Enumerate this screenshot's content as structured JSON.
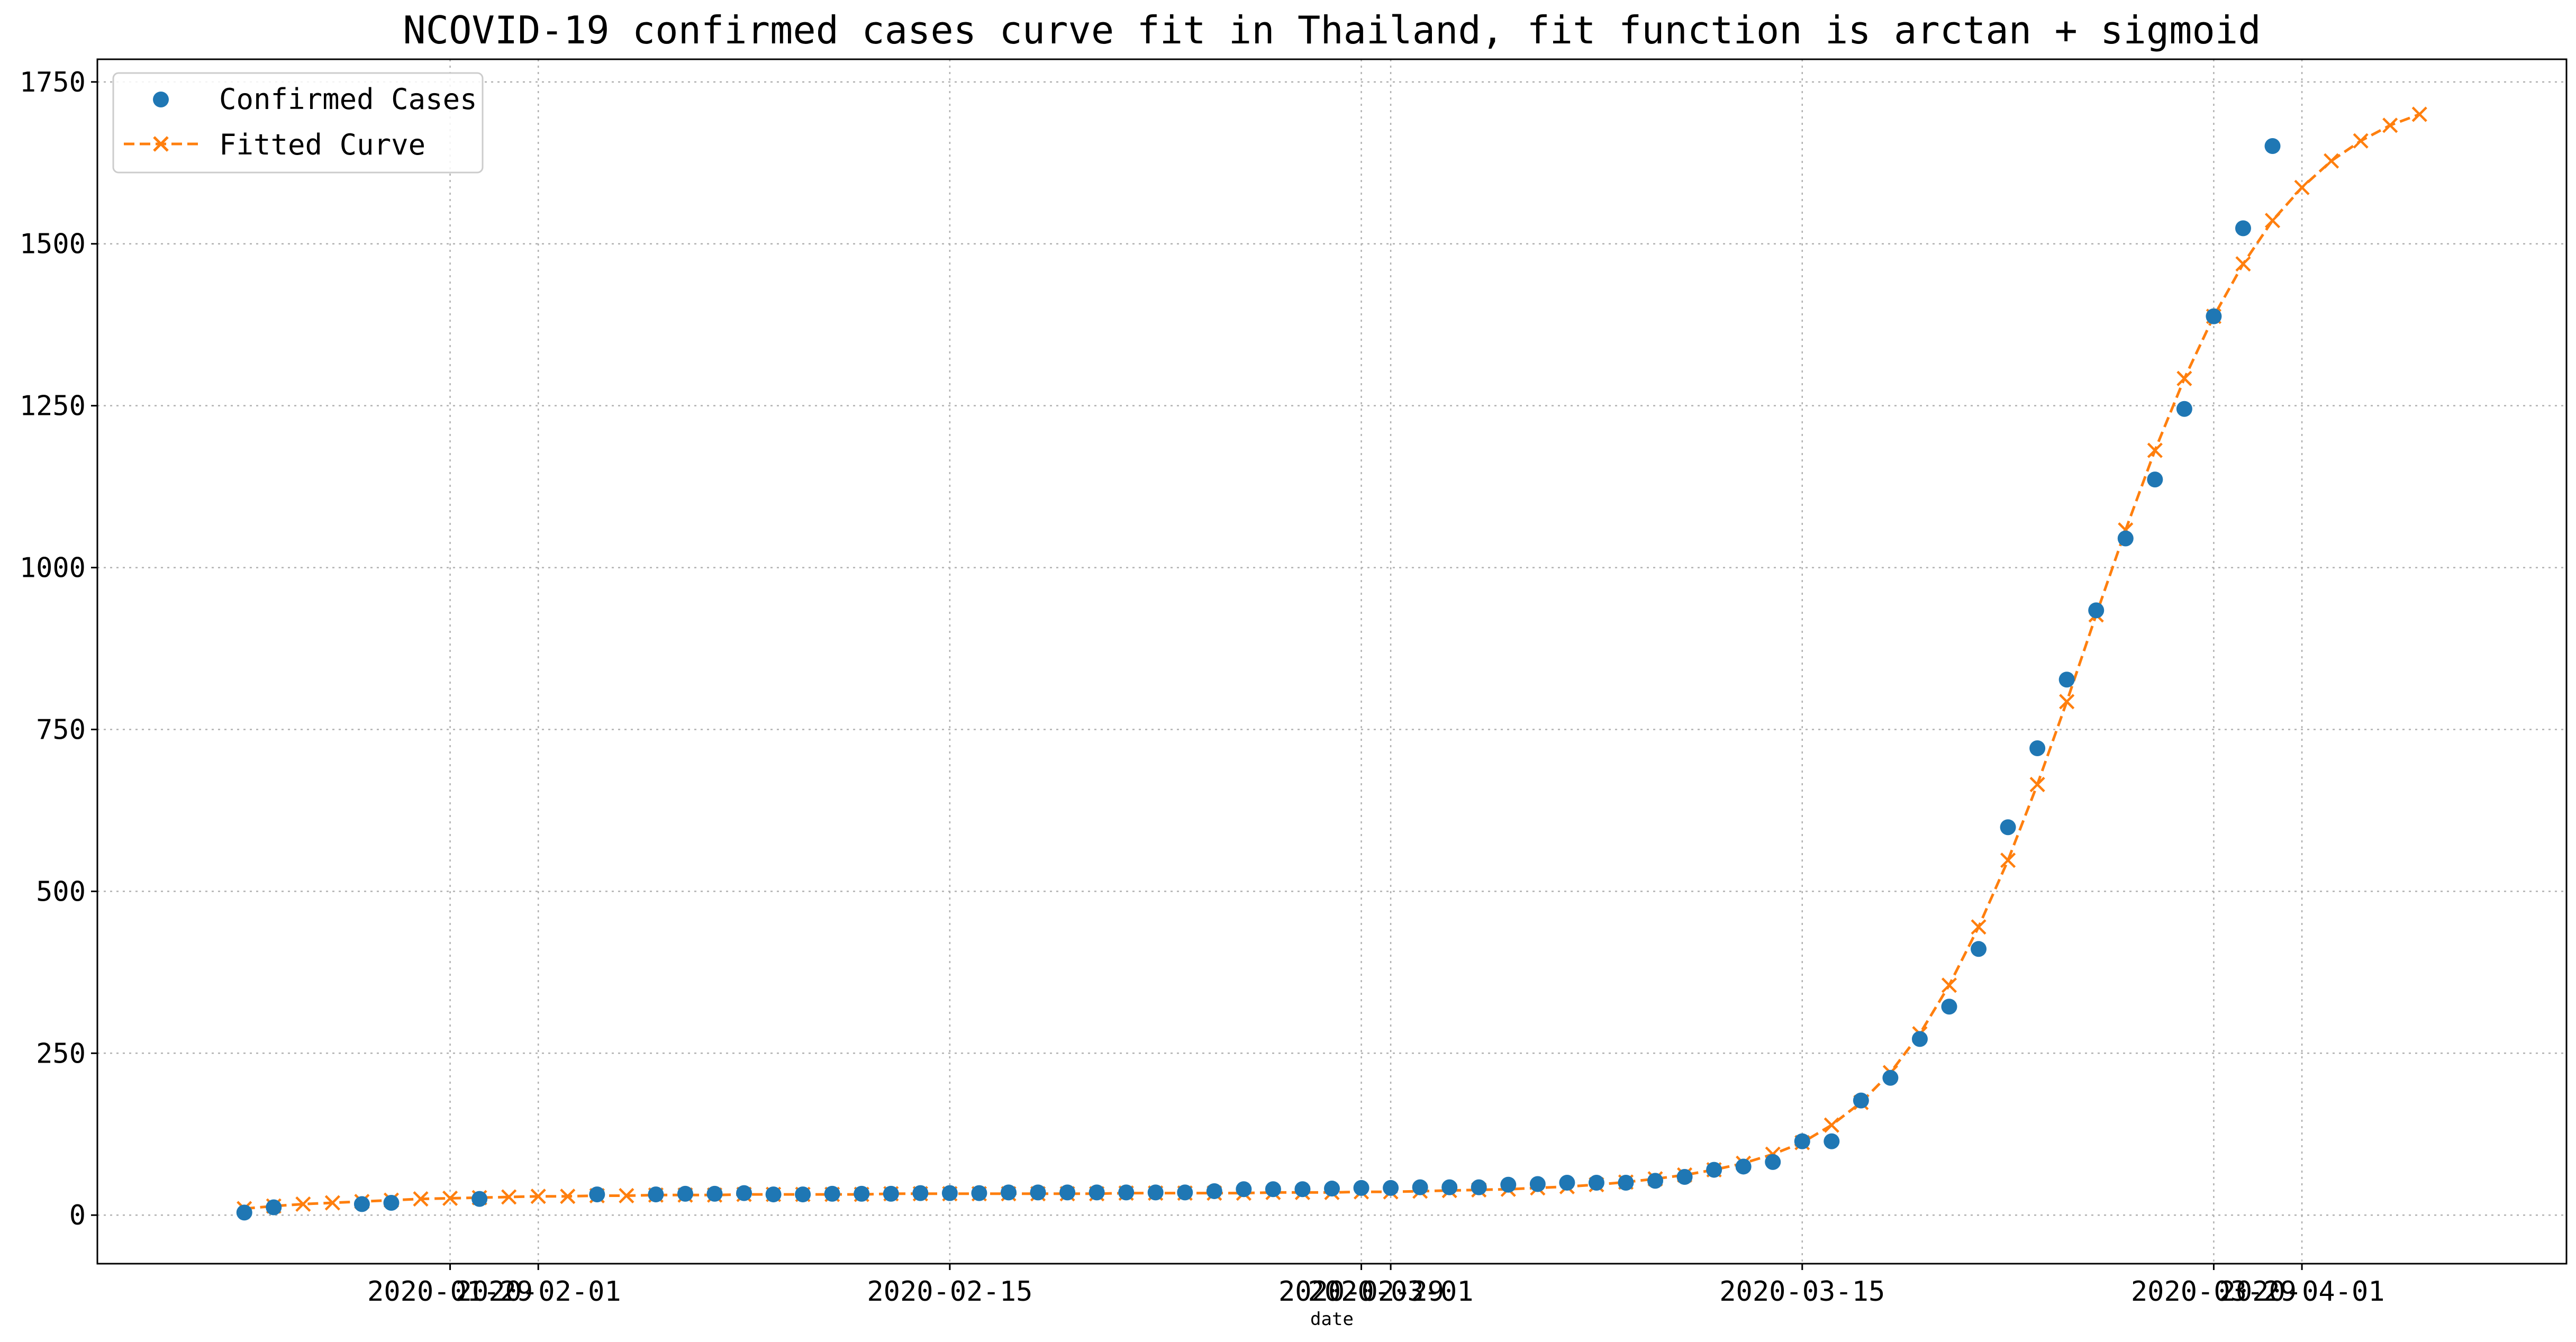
{
  "chart_data": {
    "type": "line",
    "title": "NCOVID-19 confirmed cases curve fit in Thailand, fit function is arctan + sigmoid",
    "xlabel": "date",
    "ylabel": "",
    "x_axis_type": "date",
    "xlim": [
      "2020-01-17",
      "2020-04-10"
    ],
    "ylim": [
      -75,
      1785
    ],
    "grid": true,
    "legend_position": "top-left",
    "xticks": [
      "2020-01-29",
      "2020-02-01",
      "2020-02-15",
      "2020-02-29",
      "2020-03-01",
      "2020-03-15",
      "2020-03-29",
      "2020-04-01"
    ],
    "yticks": [
      0,
      250,
      500,
      750,
      1000,
      1250,
      1500,
      1750
    ],
    "series": [
      {
        "name": "Confirmed Cases",
        "style": "markers",
        "marker": "circle",
        "color": "#1f77b4",
        "points": [
          [
            "2020-01-22",
            4
          ],
          [
            "2020-01-23",
            12
          ],
          [
            "2020-01-26",
            17
          ],
          [
            "2020-01-27",
            19
          ],
          [
            "2020-01-30",
            25
          ],
          [
            "2020-02-03",
            32
          ],
          [
            "2020-02-05",
            32
          ],
          [
            "2020-02-06",
            33
          ],
          [
            "2020-02-07",
            33
          ],
          [
            "2020-02-08",
            34
          ],
          [
            "2020-02-09",
            32
          ],
          [
            "2020-02-10",
            32
          ],
          [
            "2020-02-11",
            33
          ],
          [
            "2020-02-12",
            33
          ],
          [
            "2020-02-13",
            33
          ],
          [
            "2020-02-14",
            34
          ],
          [
            "2020-02-15",
            34
          ],
          [
            "2020-02-16",
            34
          ],
          [
            "2020-02-17",
            35
          ],
          [
            "2020-02-18",
            35
          ],
          [
            "2020-02-19",
            35
          ],
          [
            "2020-02-20",
            35
          ],
          [
            "2020-02-21",
            35
          ],
          [
            "2020-02-22",
            35
          ],
          [
            "2020-02-23",
            35
          ],
          [
            "2020-02-24",
            37
          ],
          [
            "2020-02-25",
            40
          ],
          [
            "2020-02-26",
            40
          ],
          [
            "2020-02-27",
            40
          ],
          [
            "2020-02-28",
            41
          ],
          [
            "2020-02-29",
            42
          ],
          [
            "2020-03-01",
            42
          ],
          [
            "2020-03-02",
            43
          ],
          [
            "2020-03-03",
            43
          ],
          [
            "2020-03-04",
            43
          ],
          [
            "2020-03-05",
            47
          ],
          [
            "2020-03-06",
            48
          ],
          [
            "2020-03-07",
            50
          ],
          [
            "2020-03-08",
            50
          ],
          [
            "2020-03-09",
            50
          ],
          [
            "2020-03-10",
            53
          ],
          [
            "2020-03-11",
            59
          ],
          [
            "2020-03-12",
            70
          ],
          [
            "2020-03-13",
            75
          ],
          [
            "2020-03-14",
            82
          ],
          [
            "2020-03-15",
            114
          ],
          [
            "2020-03-16",
            114
          ],
          [
            "2020-03-17",
            177
          ],
          [
            "2020-03-18",
            212
          ],
          [
            "2020-03-19",
            272
          ],
          [
            "2020-03-20",
            322
          ],
          [
            "2020-03-21",
            411
          ],
          [
            "2020-03-22",
            599
          ],
          [
            "2020-03-23",
            721
          ],
          [
            "2020-03-24",
            827
          ],
          [
            "2020-03-25",
            934
          ],
          [
            "2020-03-26",
            1045
          ],
          [
            "2020-03-27",
            1136
          ],
          [
            "2020-03-28",
            1245
          ],
          [
            "2020-03-29",
            1388
          ],
          [
            "2020-03-30",
            1524
          ],
          [
            "2020-03-31",
            1651
          ]
        ]
      },
      {
        "name": "Fitted Curve",
        "style": "dashed-line-x-markers",
        "marker": "x",
        "color": "#ff7f0e",
        "points": [
          [
            "2020-01-22",
            10
          ],
          [
            "2020-01-23",
            14
          ],
          [
            "2020-01-24",
            17
          ],
          [
            "2020-01-25",
            19
          ],
          [
            "2020-01-26",
            21
          ],
          [
            "2020-01-27",
            23
          ],
          [
            "2020-01-28",
            25
          ],
          [
            "2020-01-29",
            26
          ],
          [
            "2020-01-30",
            27
          ],
          [
            "2020-01-31",
            28
          ],
          [
            "2020-02-01",
            29
          ],
          [
            "2020-02-02",
            29
          ],
          [
            "2020-02-03",
            30
          ],
          [
            "2020-02-04",
            30
          ],
          [
            "2020-02-05",
            31
          ],
          [
            "2020-02-06",
            31
          ],
          [
            "2020-02-07",
            31
          ],
          [
            "2020-02-08",
            32
          ],
          [
            "2020-02-09",
            32
          ],
          [
            "2020-02-10",
            32
          ],
          [
            "2020-02-11",
            32
          ],
          [
            "2020-02-12",
            32
          ],
          [
            "2020-02-13",
            33
          ],
          [
            "2020-02-14",
            33
          ],
          [
            "2020-02-15",
            33
          ],
          [
            "2020-02-16",
            33
          ],
          [
            "2020-02-17",
            33
          ],
          [
            "2020-02-18",
            33
          ],
          [
            "2020-02-19",
            33
          ],
          [
            "2020-02-20",
            33
          ],
          [
            "2020-02-21",
            34
          ],
          [
            "2020-02-22",
            34
          ],
          [
            "2020-02-23",
            34
          ],
          [
            "2020-02-24",
            34
          ],
          [
            "2020-02-25",
            34
          ],
          [
            "2020-02-26",
            35
          ],
          [
            "2020-02-27",
            35
          ],
          [
            "2020-02-28",
            35
          ],
          [
            "2020-02-29",
            36
          ],
          [
            "2020-03-01",
            36
          ],
          [
            "2020-03-02",
            37
          ],
          [
            "2020-03-03",
            38
          ],
          [
            "2020-03-04",
            39
          ],
          [
            "2020-03-05",
            40
          ],
          [
            "2020-03-06",
            42
          ],
          [
            "2020-03-07",
            44
          ],
          [
            "2020-03-08",
            47
          ],
          [
            "2020-03-09",
            51
          ],
          [
            "2020-03-10",
            56
          ],
          [
            "2020-03-11",
            62
          ],
          [
            "2020-03-12",
            70
          ],
          [
            "2020-03-13",
            80
          ],
          [
            "2020-03-14",
            94
          ],
          [
            "2020-03-15",
            112
          ],
          [
            "2020-03-16",
            139
          ],
          [
            "2020-03-17",
            174
          ],
          [
            "2020-03-18",
            220
          ],
          [
            "2020-03-19",
            280
          ],
          [
            "2020-03-20",
            355
          ],
          [
            "2020-03-21",
            445
          ],
          [
            "2020-03-22",
            548
          ],
          [
            "2020-03-23",
            665
          ],
          [
            "2020-03-24",
            793
          ],
          [
            "2020-03-25",
            927
          ],
          [
            "2020-03-26",
            1058
          ],
          [
            "2020-03-27",
            1181
          ],
          [
            "2020-03-28",
            1292
          ],
          [
            "2020-03-29",
            1388
          ],
          [
            "2020-03-30",
            1469
          ],
          [
            "2020-03-31",
            1536
          ],
          [
            "2020-04-01",
            1587
          ],
          [
            "2020-04-02",
            1628
          ],
          [
            "2020-04-03",
            1659
          ],
          [
            "2020-04-04",
            1683
          ],
          [
            "2020-04-05",
            1700
          ]
        ]
      }
    ]
  }
}
